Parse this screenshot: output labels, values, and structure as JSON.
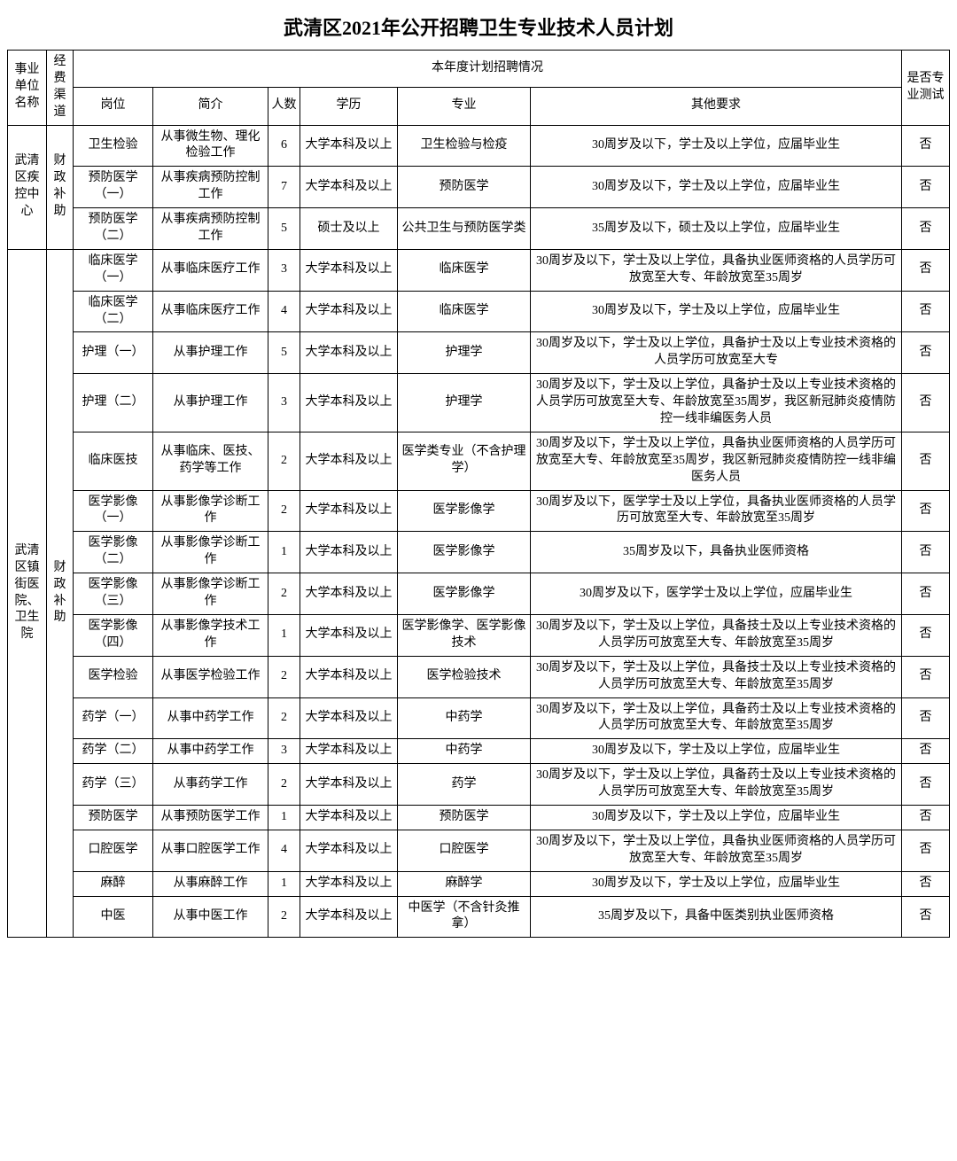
{
  "title": "武清区2021年公开招聘卫生专业技术人员计划",
  "headers": {
    "org": "事业单位名称",
    "fund": "经费渠道",
    "plan_group": "本年度计划招聘情况",
    "post": "岗位",
    "desc": "简介",
    "num": "人数",
    "edu": "学历",
    "major": "专业",
    "req": "其他要求",
    "test": "是否专业测试"
  },
  "groups": [
    {
      "org": "武清区疾控中心",
      "fund": "财政补助",
      "rows": [
        {
          "post": "卫生检验",
          "desc": "从事微生物、理化检验工作",
          "num": "6",
          "edu": "大学本科及以上",
          "major": "卫生检验与检疫",
          "req": "30周岁及以下，学士及以上学位，应届毕业生",
          "test": "否"
        },
        {
          "post": "预防医学（一）",
          "desc": "从事疾病预防控制工作",
          "num": "7",
          "edu": "大学本科及以上",
          "major": "预防医学",
          "req": "30周岁及以下，学士及以上学位，应届毕业生",
          "test": "否"
        },
        {
          "post": "预防医学（二）",
          "desc": "从事疾病预防控制工作",
          "num": "5",
          "edu": "硕士及以上",
          "major": "公共卫生与预防医学类",
          "req": "35周岁及以下，硕士及以上学位，应届毕业生",
          "test": "否"
        }
      ]
    },
    {
      "org": "武清区镇街医院、卫生院",
      "fund": "财政补助",
      "rows": [
        {
          "post": "临床医学（一）",
          "desc": "从事临床医疗工作",
          "num": "3",
          "edu": "大学本科及以上",
          "major": "临床医学",
          "req": "30周岁及以下，学士及以上学位，具备执业医师资格的人员学历可放宽至大专、年龄放宽至35周岁",
          "test": "否"
        },
        {
          "post": "临床医学（二）",
          "desc": "从事临床医疗工作",
          "num": "4",
          "edu": "大学本科及以上",
          "major": "临床医学",
          "req": "30周岁及以下，学士及以上学位，应届毕业生",
          "test": "否"
        },
        {
          "post": "护理（一）",
          "desc": "从事护理工作",
          "num": "5",
          "edu": "大学本科及以上",
          "major": "护理学",
          "req": "30周岁及以下，学士及以上学位，具备护士及以上专业技术资格的人员学历可放宽至大专",
          "test": "否"
        },
        {
          "post": "护理（二）",
          "desc": "从事护理工作",
          "num": "3",
          "edu": "大学本科及以上",
          "major": "护理学",
          "req": "30周岁及以下，学士及以上学位，具备护士及以上专业技术资格的人员学历可放宽至大专、年龄放宽至35周岁，我区新冠肺炎疫情防控一线非编医务人员",
          "test": "否"
        },
        {
          "post": "临床医技",
          "desc": "从事临床、医技、药学等工作",
          "num": "2",
          "edu": "大学本科及以上",
          "major": "医学类专业（不含护理学）",
          "req": "30周岁及以下，学士及以上学位，具备执业医师资格的人员学历可放宽至大专、年龄放宽至35周岁，我区新冠肺炎疫情防控一线非编医务人员",
          "test": "否"
        },
        {
          "post": "医学影像（一）",
          "desc": "从事影像学诊断工作",
          "num": "2",
          "edu": "大学本科及以上",
          "major": "医学影像学",
          "req": "30周岁及以下，医学学士及以上学位，具备执业医师资格的人员学历可放宽至大专、年龄放宽至35周岁",
          "test": "否"
        },
        {
          "post": "医学影像（二）",
          "desc": "从事影像学诊断工作",
          "num": "1",
          "edu": "大学本科及以上",
          "major": "医学影像学",
          "req": "35周岁及以下，具备执业医师资格",
          "test": "否"
        },
        {
          "post": "医学影像（三）",
          "desc": "从事影像学诊断工作",
          "num": "2",
          "edu": "大学本科及以上",
          "major": "医学影像学",
          "req": "30周岁及以下，医学学士及以上学位，应届毕业生",
          "test": "否"
        },
        {
          "post": "医学影像（四）",
          "desc": "从事影像学技术工作",
          "num": "1",
          "edu": "大学本科及以上",
          "major": "医学影像学、医学影像技术",
          "req": "30周岁及以下，学士及以上学位，具备技士及以上专业技术资格的人员学历可放宽至大专、年龄放宽至35周岁",
          "test": "否"
        },
        {
          "post": "医学检验",
          "desc": "从事医学检验工作",
          "num": "2",
          "edu": "大学本科及以上",
          "major": "医学检验技术",
          "req": "30周岁及以下，学士及以上学位，具备技士及以上专业技术资格的人员学历可放宽至大专、年龄放宽至35周岁",
          "test": "否"
        },
        {
          "post": "药学（一）",
          "desc": "从事中药学工作",
          "num": "2",
          "edu": "大学本科及以上",
          "major": "中药学",
          "req": "30周岁及以下，学士及以上学位，具备药士及以上专业技术资格的人员学历可放宽至大专、年龄放宽至35周岁",
          "test": "否"
        },
        {
          "post": "药学（二）",
          "desc": "从事中药学工作",
          "num": "3",
          "edu": "大学本科及以上",
          "major": "中药学",
          "req": "30周岁及以下，学士及以上学位，应届毕业生",
          "test": "否"
        },
        {
          "post": "药学（三）",
          "desc": "从事药学工作",
          "num": "2",
          "edu": "大学本科及以上",
          "major": "药学",
          "req": "30周岁及以下，学士及以上学位，具备药士及以上专业技术资格的人员学历可放宽至大专、年龄放宽至35周岁",
          "test": "否"
        },
        {
          "post": "预防医学",
          "desc": "从事预防医学工作",
          "num": "1",
          "edu": "大学本科及以上",
          "major": "预防医学",
          "req": "30周岁及以下，学士及以上学位，应届毕业生",
          "test": "否"
        },
        {
          "post": "口腔医学",
          "desc": "从事口腔医学工作",
          "num": "4",
          "edu": "大学本科及以上",
          "major": "口腔医学",
          "req": "30周岁及以下，学士及以上学位，具备执业医师资格的人员学历可放宽至大专、年龄放宽至35周岁",
          "test": "否"
        },
        {
          "post": "麻醉",
          "desc": "从事麻醉工作",
          "num": "1",
          "edu": "大学本科及以上",
          "major": "麻醉学",
          "req": "30周岁及以下，学士及以上学位，应届毕业生",
          "test": "否"
        },
        {
          "post": "中医",
          "desc": "从事中医工作",
          "num": "2",
          "edu": "大学本科及以上",
          "major": "中医学（不含针灸推拿）",
          "req": "35周岁及以下，具备中医类别执业医师资格",
          "test": "否"
        }
      ]
    }
  ]
}
